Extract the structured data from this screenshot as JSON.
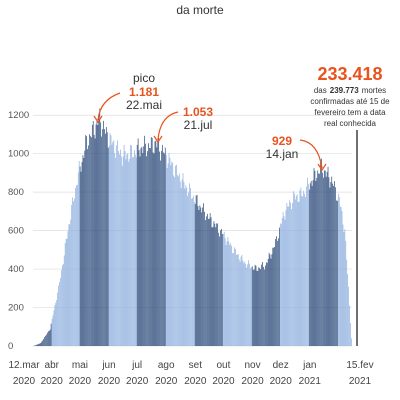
{
  "title_fragment": "da morte",
  "chart_data": {
    "type": "bar",
    "title": "",
    "xlabel": "",
    "ylabel": "",
    "ylim": [
      0,
      1300
    ],
    "yticks": [
      0,
      200,
      400,
      600,
      800,
      1000,
      1200
    ],
    "grid": true,
    "x_start": "2020-03-12",
    "x_end": "2021-02-15",
    "daily_shape": [
      {
        "x": "2020-03-12",
        "y": 0
      },
      {
        "x": "2020-03-20",
        "y": 15
      },
      {
        "x": "2020-03-30",
        "y": 90
      },
      {
        "x": "2020-04-08",
        "y": 300
      },
      {
        "x": "2020-04-18",
        "y": 600
      },
      {
        "x": "2020-04-28",
        "y": 870
      },
      {
        "x": "2020-05-08",
        "y": 1060
      },
      {
        "x": "2020-05-15",
        "y": 1120
      },
      {
        "x": "2020-05-22",
        "y": 1181
      },
      {
        "x": "2020-05-28",
        "y": 1110
      },
      {
        "x": "2020-06-05",
        "y": 1050
      },
      {
        "x": "2020-06-15",
        "y": 990
      },
      {
        "x": "2020-06-25",
        "y": 1000
      },
      {
        "x": "2020-07-05",
        "y": 1030
      },
      {
        "x": "2020-07-15",
        "y": 1040
      },
      {
        "x": "2020-07-21",
        "y": 1053
      },
      {
        "x": "2020-08-01",
        "y": 990
      },
      {
        "x": "2020-08-15",
        "y": 880
      },
      {
        "x": "2020-09-01",
        "y": 760
      },
      {
        "x": "2020-09-15",
        "y": 670
      },
      {
        "x": "2020-10-01",
        "y": 580
      },
      {
        "x": "2020-10-15",
        "y": 480
      },
      {
        "x": "2020-10-25",
        "y": 430
      },
      {
        "x": "2020-11-05",
        "y": 400
      },
      {
        "x": "2020-11-15",
        "y": 420
      },
      {
        "x": "2020-11-25",
        "y": 520
      },
      {
        "x": "2020-12-05",
        "y": 690
      },
      {
        "x": "2020-12-15",
        "y": 770
      },
      {
        "x": "2020-12-25",
        "y": 790
      },
      {
        "x": "2021-01-05",
        "y": 870
      },
      {
        "x": "2021-01-14",
        "y": 929
      },
      {
        "x": "2021-01-25",
        "y": 860
      },
      {
        "x": "2021-02-02",
        "y": 760
      },
      {
        "x": "2021-02-08",
        "y": 600
      },
      {
        "x": "2021-02-12",
        "y": 300
      },
      {
        "x": "2021-02-15",
        "y": 40
      }
    ],
    "month_ticks": [
      {
        "date": "2020-03-12",
        "line1": "12.mar",
        "line2": "2020"
      },
      {
        "date": "2020-04-01",
        "line1": "abr",
        "line2": "2020"
      },
      {
        "date": "2020-05-01",
        "line1": "mai",
        "line2": "2020"
      },
      {
        "date": "2020-06-01",
        "line1": "jun",
        "line2": "2020"
      },
      {
        "date": "2020-07-01",
        "line1": "jul",
        "line2": "2020"
      },
      {
        "date": "2020-08-01",
        "line1": "ago",
        "line2": "2020"
      },
      {
        "date": "2020-09-01",
        "line1": "set",
        "line2": "2020"
      },
      {
        "date": "2020-10-01",
        "line1": "out",
        "line2": "2020"
      },
      {
        "date": "2020-11-01",
        "line1": "nov",
        "line2": "2020"
      },
      {
        "date": "2020-12-01",
        "line1": "dez",
        "line2": "2020"
      },
      {
        "date": "2021-01-01",
        "line1": "jan",
        "line2": "2021"
      },
      {
        "date": "2021-02-15",
        "line1": "15.fev",
        "line2": "2021"
      }
    ],
    "annotations": [
      {
        "label": "pico",
        "value": "1.181",
        "date_label": "22.mai",
        "x": "2020-05-22",
        "y": 1181
      },
      {
        "value": "1.053",
        "date_label": "21.jul",
        "x": "2020-07-21",
        "y": 1053
      },
      {
        "value": "929",
        "date_label": "14.jan",
        "x": "2021-01-14",
        "y": 929
      }
    ],
    "total": {
      "value": "233.418",
      "note_prefix": "das",
      "note_bold": "239.773",
      "note_rest": "mortes",
      "note_line2": "confirmadas até 15 de",
      "note_line3": "fevereiro tem a data",
      "note_line4": "real conhecida"
    },
    "colors": {
      "bar_dark": "#2b4a7a",
      "bar_light": "#8fb0de",
      "accent": "#e8531e",
      "grid": "#dddddd"
    }
  }
}
